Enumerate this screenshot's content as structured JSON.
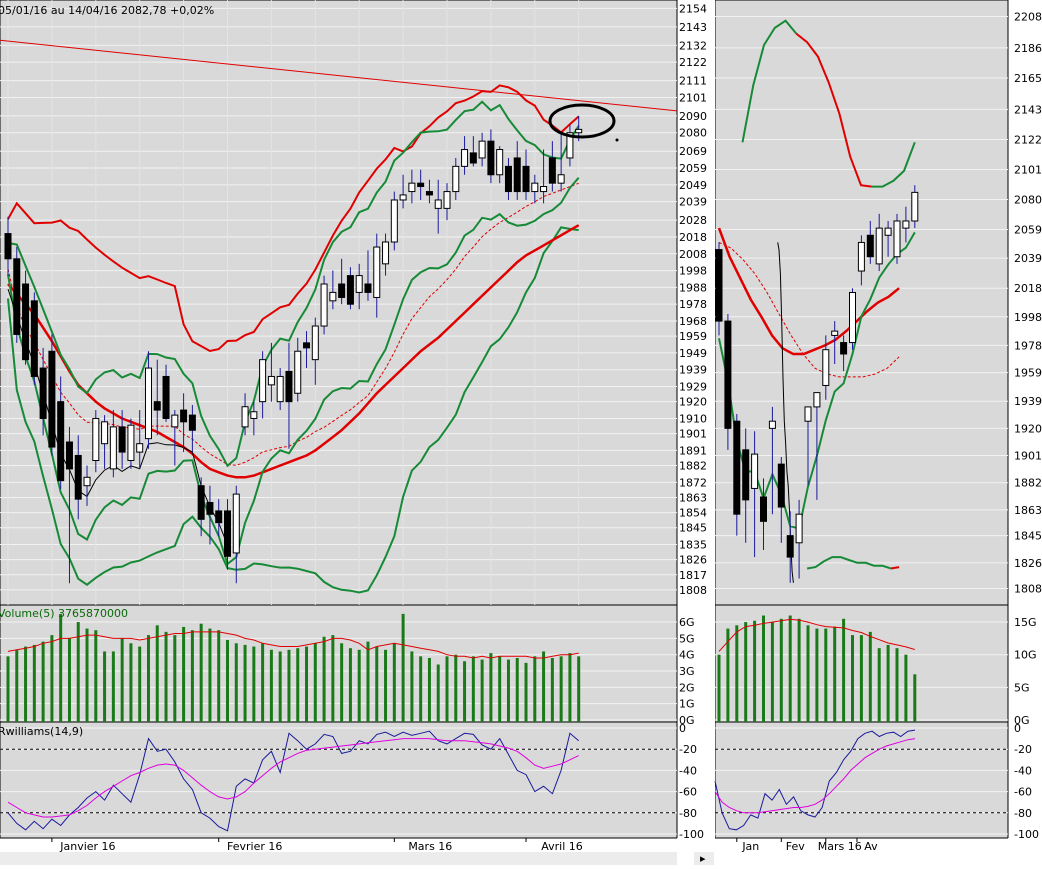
{
  "title": "05/01/16 au 14/04/16  2082,78  +0,02%",
  "colors": {
    "bg": "#d9d9d9",
    "grid": "#f2f2f2",
    "red": "#e00000",
    "green": "#168a36",
    "black": "#000000",
    "blue": "#1a1a9c",
    "magenta": "#e000e0",
    "vol": "#1a7a1a"
  },
  "daily": {
    "price_ticks": [
      2154,
      2143,
      2132,
      2122,
      2111,
      2101,
      2090,
      2080,
      2069,
      2059,
      2049,
      2039,
      2028,
      2018,
      2008,
      1998,
      1988,
      1978,
      1968,
      1959,
      1949,
      1939,
      1929,
      1920,
      1910,
      1901,
      1891,
      1882,
      1872,
      1863,
      1854,
      1845,
      1835,
      1826,
      1817,
      1808
    ],
    "ylim": [
      1802,
      2156
    ],
    "x_labels": [
      {
        "label": "Janvier 16",
        "i": 5
      },
      {
        "label": "Fevrier 16",
        "i": 24
      },
      {
        "label": "Mars 16",
        "i": 44
      },
      {
        "label": "Avril 16",
        "i": 59
      }
    ],
    "candles": [
      [
        2020,
        2030,
        1995,
        2005
      ],
      [
        2005,
        2012,
        1955,
        1960
      ],
      [
        1990,
        1998,
        1942,
        1945
      ],
      [
        1980,
        1985,
        1930,
        1935
      ],
      [
        1940,
        1952,
        1900,
        1910
      ],
      [
        1950,
        1960,
        1888,
        1893
      ],
      [
        1920,
        1935,
        1868,
        1873
      ],
      [
        1896,
        1905,
        1812,
        1880
      ],
      [
        1888,
        1900,
        1850,
        1862
      ],
      [
        1870,
        1882,
        1858,
        1875
      ],
      [
        1885,
        1915,
        1878,
        1910
      ],
      [
        1895,
        1912,
        1880,
        1908
      ],
      [
        1880,
        1915,
        1875,
        1905
      ],
      [
        1905,
        1915,
        1880,
        1890
      ],
      [
        1885,
        1910,
        1880,
        1906
      ],
      [
        1890,
        1915,
        1880,
        1895
      ],
      [
        1898,
        1950,
        1892,
        1940
      ],
      [
        1920,
        1945,
        1900,
        1915
      ],
      [
        1935,
        1942,
        1908,
        1910
      ],
      [
        1905,
        1915,
        1882,
        1912
      ],
      [
        1915,
        1925,
        1890,
        1908
      ],
      [
        1912,
        1918,
        1890,
        1903
      ],
      [
        1870,
        1875,
        1840,
        1850
      ],
      [
        1860,
        1870,
        1835,
        1853
      ],
      [
        1855,
        1862,
        1840,
        1848
      ],
      [
        1855,
        1862,
        1820,
        1828
      ],
      [
        1830,
        1870,
        1812,
        1865
      ],
      [
        1905,
        1925,
        1900,
        1917
      ],
      [
        1910,
        1920,
        1900,
        1914
      ],
      [
        1920,
        1950,
        1910,
        1945
      ],
      [
        1930,
        1955,
        1920,
        1935
      ],
      [
        1920,
        1940,
        1915,
        1935
      ],
      [
        1938,
        1955,
        1892,
        1920
      ],
      [
        1925,
        1958,
        1920,
        1950
      ],
      [
        1955,
        1962,
        1940,
        1952
      ],
      [
        1945,
        1970,
        1930,
        1965
      ],
      [
        1965,
        1995,
        1960,
        1990
      ],
      [
        1980,
        1998,
        1975,
        1985
      ],
      [
        1990,
        2005,
        1978,
        1982
      ],
      [
        1995,
        2000,
        1975,
        1978
      ],
      [
        1985,
        2002,
        1975,
        1995
      ],
      [
        1990,
        2010,
        1980,
        1985
      ],
      [
        1982,
        2020,
        1970,
        2012
      ],
      [
        2002,
        2020,
        1995,
        2015
      ],
      [
        2015,
        2045,
        2010,
        2040
      ],
      [
        2040,
        2055,
        2035,
        2043
      ],
      [
        2045,
        2058,
        2038,
        2050
      ],
      [
        2050,
        2058,
        2040,
        2048
      ],
      [
        2045,
        2052,
        2038,
        2043
      ],
      [
        2035,
        2052,
        2020,
        2040
      ],
      [
        2035,
        2050,
        2028,
        2045
      ],
      [
        2045,
        2065,
        2040,
        2060
      ],
      [
        2060,
        2078,
        2055,
        2070
      ],
      [
        2068,
        2078,
        2060,
        2062
      ],
      [
        2065,
        2080,
        2060,
        2075
      ],
      [
        2075,
        2082,
        2050,
        2055
      ],
      [
        2055,
        2072,
        2050,
        2070
      ],
      [
        2060,
        2065,
        2040,
        2045
      ],
      [
        2065,
        2075,
        2040,
        2045
      ],
      [
        2060,
        2070,
        2040,
        2045
      ],
      [
        2045,
        2055,
        2038,
        2050
      ],
      [
        2045,
        2070,
        2038,
        2048
      ],
      [
        2065,
        2075,
        2045,
        2050
      ],
      [
        2050,
        2080,
        2045,
        2055
      ],
      [
        2065,
        2085,
        2060,
        2080
      ],
      [
        2080,
        2090,
        2075,
        2082
      ]
    ],
    "sma50": [
      1990,
      1984,
      1978,
      1972,
      1964,
      1956,
      1947,
      1938,
      1930,
      1925,
      1920,
      1916,
      1913,
      1910,
      1908,
      1906,
      1904,
      1902,
      1899,
      1896,
      1893,
      1889,
      1884,
      1880,
      1878,
      1876,
      1875,
      1875,
      1876,
      1878,
      1880,
      1882,
      1884,
      1886,
      1888,
      1891,
      1895,
      1899,
      1903,
      1908,
      1913,
      1919,
      1925,
      1930,
      1935,
      1940,
      1945,
      1950,
      1954,
      1958,
      1963,
      1968,
      1973,
      1978,
      1983,
      1988,
      1993,
      1998,
      2003,
      2007,
      2010,
      2013,
      2016,
      2019,
      2022,
      2025
    ],
    "trend_from": 2135,
    "trend_to": 2093,
    "vol_ticks": [
      "6G",
      "5G",
      "4G",
      "3G",
      "2G",
      "1G",
      "0G"
    ],
    "vol_ylim": [
      0,
      6.8
    ],
    "volume": [
      3.9,
      4.3,
      4.5,
      4.6,
      4.8,
      5.2,
      6.5,
      5.0,
      6.0,
      5.6,
      5.5,
      4.2,
      4.2,
      5.0,
      4.7,
      4.5,
      5.2,
      5.8,
      5.4,
      5.2,
      5.7,
      5.5,
      5.9,
      5.6,
      5.5,
      4.9,
      4.7,
      4.6,
      4.5,
      4.7,
      4.3,
      4.2,
      4.3,
      4.4,
      4.5,
      4.7,
      5.1,
      5.2,
      4.7,
      4.4,
      4.3,
      4.8,
      4.5,
      4.3,
      4.7,
      6.5,
      4.2,
      3.9,
      3.8,
      3.4,
      3.9,
      4.0,
      3.6,
      3.9,
      3.7,
      4.1,
      3.9,
      3.7,
      3.8,
      3.5,
      3.9,
      4.2,
      3.8,
      3.9,
      4.1,
      3.9
    ],
    "vol_avg": [
      4.2,
      4.3,
      4.4,
      4.5,
      4.7,
      4.8,
      5.0,
      5.0,
      5.1,
      5.2,
      5.2,
      5.1,
      5.0,
      5.0,
      5.0,
      4.9,
      5.0,
      5.1,
      5.2,
      5.3,
      5.3,
      5.4,
      5.4,
      5.4,
      5.4,
      5.3,
      5.2,
      5.0,
      4.9,
      4.7,
      4.6,
      4.5,
      4.5,
      4.5,
      4.6,
      4.7,
      4.8,
      5.0,
      5.0,
      4.9,
      4.7,
      4.3,
      4.5,
      4.6,
      4.7,
      4.6,
      4.5,
      4.4,
      4.3,
      4.2,
      4.0,
      3.9,
      3.9,
      3.8,
      3.9,
      3.8,
      3.9,
      3.9,
      3.9,
      3.9,
      3.8,
      3.8,
      3.9,
      4.0,
      4.0,
      4.1
    ],
    "wr_ticks": [
      0,
      -20,
      -40,
      -60,
      -80,
      -100
    ],
    "wr": [
      -80,
      -90,
      -96,
      -88,
      -95,
      -86,
      -92,
      -82,
      -75,
      -66,
      -60,
      -68,
      -54,
      -62,
      -70,
      -44,
      -10,
      -22,
      -20,
      -32,
      -48,
      -58,
      -80,
      -85,
      -93,
      -97,
      -55,
      -48,
      -52,
      -30,
      -22,
      -42,
      -5,
      -12,
      -20,
      -15,
      -6,
      -8,
      -24,
      -22,
      -12,
      -15,
      -6,
      -4,
      -8,
      -4,
      -7,
      -5,
      -3,
      -12,
      -15,
      -10,
      -5,
      -6,
      -16,
      -20,
      -10,
      -25,
      -40,
      -44,
      -60,
      -55,
      -62,
      -40,
      -5,
      -12
    ],
    "wr_avg": [
      -70,
      -75,
      -80,
      -82,
      -84,
      -84,
      -83,
      -82,
      -78,
      -73,
      -66,
      -60,
      -55,
      -50,
      -45,
      -42,
      -38,
      -35,
      -34,
      -35,
      -40,
      -47,
      -54,
      -60,
      -65,
      -67,
      -65,
      -60,
      -52,
      -45,
      -38,
      -32,
      -28,
      -24,
      -21,
      -20,
      -19,
      -18,
      -17,
      -16,
      -15,
      -14,
      -13,
      -12,
      -11,
      -10,
      -10,
      -10,
      -10,
      -11,
      -12,
      -12,
      -12,
      -13,
      -14,
      -15,
      -17,
      -19,
      -22,
      -28,
      -35,
      -38,
      -36,
      -34,
      -30,
      -26
    ],
    "wr_levels": [
      -20,
      -80
    ]
  },
  "weekly": {
    "price_ticks": [
      2208,
      2186,
      2165,
      2143,
      2122,
      2101,
      2080,
      2059,
      2039,
      2018,
      1998,
      1978,
      1959,
      1939,
      1920,
      1901,
      1882,
      1863,
      1845,
      1826,
      1808
    ],
    "ylim": [
      1800,
      2216
    ],
    "x_labels": [
      {
        "label": "Jan",
        "i": 2
      },
      {
        "label": "Fev",
        "i": 7
      },
      {
        "label": "Mars 16",
        "i": 12
      },
      {
        "label": "Av",
        "i": 15.5
      }
    ],
    "candles": [
      [
        2045,
        2050,
        1985,
        1995
      ],
      [
        1995,
        2000,
        1905,
        1920
      ],
      [
        1925,
        1930,
        1845,
        1860
      ],
      [
        1905,
        1920,
        1840,
        1870
      ],
      [
        1878,
        1918,
        1830,
        1902
      ],
      [
        1872,
        1885,
        1835,
        1855
      ],
      [
        1920,
        1935,
        1860,
        1925
      ],
      [
        1895,
        1900,
        1840,
        1865
      ],
      [
        1845,
        1862,
        1812,
        1830
      ],
      [
        1840,
        1870,
        1815,
        1860
      ],
      [
        1925,
        1935,
        1880,
        1935
      ],
      [
        1935,
        1945,
        1870,
        1945
      ],
      [
        1950,
        1985,
        1940,
        1975
      ],
      [
        1985,
        1995,
        1965,
        1988
      ],
      [
        1980,
        1985,
        1960,
        1972
      ],
      [
        1980,
        2018,
        1975,
        2015
      ],
      [
        2030,
        2055,
        2020,
        2050
      ],
      [
        2055,
        2065,
        2035,
        2040
      ],
      [
        2035,
        2070,
        2030,
        2060
      ],
      [
        2055,
        2065,
        2040,
        2060
      ],
      [
        2040,
        2070,
        2035,
        2065
      ],
      [
        2060,
        2075,
        2050,
        2065
      ],
      [
        2065,
        2090,
        2060,
        2085
      ]
    ],
    "sma_black": [
      2050,
      2045,
      2028,
      1995,
      1955,
      1925,
      1910,
      1890,
      1880,
      1862,
      1840,
      1820,
      1812
    ],
    "bb_upper": [
      2120,
      2160,
      2188,
      2200,
      2205,
      2196,
      2190,
      2180,
      2162,
      2140,
      2110,
      2090,
      2089,
      2089,
      2093,
      2100,
      2120
    ],
    "bb_lower": [
      1822,
      1823,
      1827,
      1830,
      1830,
      1828,
      1826,
      1826,
      1824,
      1824,
      1822,
      1823
    ],
    "bb_mid": [
      2060,
      2040,
      2025,
      2010,
      1998,
      1985,
      1976,
      1972,
      1972,
      1975,
      1978,
      1982,
      1988,
      1995,
      2002,
      2008,
      2012,
      2018
    ],
    "sma_dashed": [
      2050,
      2046,
      2038,
      2028,
      2015,
      2000,
      1985,
      1972,
      1962,
      1958,
      1956,
      1956,
      1956,
      1958,
      1962,
      1970
    ],
    "vol_ticks": [
      "15G",
      "10G",
      "5G",
      "0G"
    ],
    "vol_ylim": [
      0,
      17
    ],
    "volume": [
      10,
      14,
      14.5,
      15,
      15.2,
      16,
      15,
      15.5,
      16,
      15.5,
      14.5,
      14,
      14,
      14.3,
      15.5,
      13,
      13,
      13.5,
      11,
      11.5,
      11,
      10,
      7
    ],
    "vol_avg": [
      10.5,
      12,
      13.5,
      14.3,
      14.5,
      14.8,
      15,
      15.2,
      15.4,
      15.3,
      15,
      14.6,
      14.3,
      14.2,
      14.1,
      13.7,
      13.4,
      12.8,
      12.3,
      11.8,
      11.5,
      11.2,
      10.8
    ],
    "wr_ticks": [
      0,
      -20,
      -40,
      -60,
      -80,
      -100
    ],
    "wr": [
      -50,
      -80,
      -95,
      -96,
      -92,
      -82,
      -85,
      -62,
      -68,
      -58,
      -72,
      -65,
      -78,
      -82,
      -84,
      -75,
      -50,
      -42,
      -30,
      -22,
      -10,
      -5,
      -3,
      -8,
      -5,
      -4,
      -8,
      -3,
      -2
    ],
    "wr_avg": [
      -60,
      -70,
      -75,
      -78,
      -80,
      -80,
      -80,
      -79,
      -78,
      -77,
      -76,
      -75,
      -75,
      -74,
      -72,
      -68,
      -62,
      -55,
      -48,
      -40,
      -34,
      -28,
      -24,
      -20,
      -17,
      -15,
      -13,
      -11,
      -10
    ],
    "wr_levels": [
      -20,
      -80
    ]
  },
  "volume_label": "Volume(5) 3765870000",
  "wr_label": "Rwilliams(14,9)"
}
